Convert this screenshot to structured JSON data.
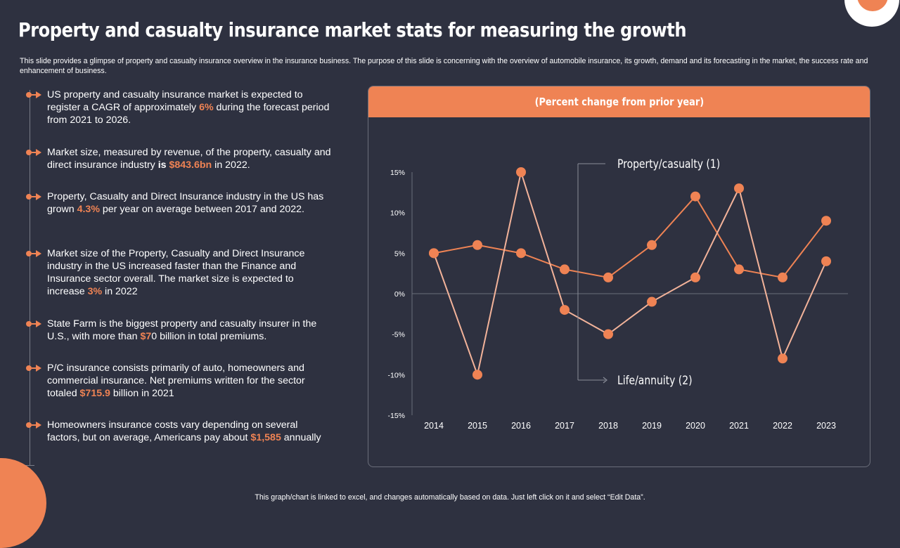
{
  "title": "Property and casualty insurance market stats for measuring the growth",
  "subtitle": "This slide provides a glimpse of property and casualty insurance overview in the insurance business. The purpose of this slide is concerning with the overview of automobile insurance, its growth, demand and its forecasting in the market, the success rate and enhancement of business.",
  "bullets": [
    {
      "parts": [
        {
          "t": "US property and casualty insurance market is expected to register a CAGR of approximately "
        },
        {
          "t": "6%",
          "hl": true
        },
        {
          "t": " during the forecast period from 2021 to 2026."
        }
      ]
    },
    {
      "parts": [
        {
          "t": " Market size, measured by revenue, of the property, casualty and direct insurance industry "
        },
        {
          "t": "is ",
          "bold": true
        },
        {
          "t": "$843.6bn",
          "hl": true
        },
        {
          "t": " in 2022."
        }
      ]
    },
    {
      "parts": [
        {
          "t": "Property, Casualty and Direct Insurance industry in the US has grown "
        },
        {
          "t": "4.3%",
          "hl": true
        },
        {
          "t": " per year on average between 2017 and 2022."
        }
      ]
    },
    {
      "parts": [
        {
          "t": "Market size of the Property, Casualty and Direct Insurance industry in the US increased faster than the Finance and Insurance sector overall. The market size is expected to increase "
        },
        {
          "t": "3%",
          "hl": true
        },
        {
          "t": " in 2022"
        }
      ]
    },
    {
      "parts": [
        {
          "t": "State Farm is the biggest property and casualty insurer in the U.S., with more than "
        },
        {
          "t": "$7",
          "hl": true
        },
        {
          "t": "0 billion in total premiums."
        }
      ]
    },
    {
      "parts": [
        {
          "t": "P/C insurance consists primarily of auto, homeowners and commercial insurance. Net premiums written for the sector totaled "
        },
        {
          "t": "$715.9",
          "hl": true
        },
        {
          "t": " billion in 2021"
        }
      ]
    },
    {
      "parts": [
        {
          "t": "Homeowners insurance costs vary depending on several factors, but on average, Americans pay about "
        },
        {
          "t": "$1,585",
          "hl": true
        },
        {
          "t": " annually"
        }
      ]
    }
  ],
  "footer": "This graph/chart is linked to excel,  and changes automatically based on data. Just left click on it and select “Edit Data”.",
  "colors": {
    "accent": "#ef8354",
    "series2": "#f3b39a",
    "background": "#2e3140"
  },
  "chart_data": {
    "type": "line",
    "title": "(Percent change from prior year)",
    "x": [
      "2014",
      "2015",
      "2016",
      "2017",
      "2018",
      "2019",
      "2020",
      "2021",
      "2022",
      "2023"
    ],
    "ylim": [
      -15,
      15
    ],
    "yticks": [
      15,
      10,
      5,
      0,
      -5,
      -10,
      -15
    ],
    "ytick_labels": [
      "15%",
      "10%",
      "5%",
      "0%",
      "-5%",
      "-10%",
      "-15%"
    ],
    "grid": false,
    "series": [
      {
        "name": "Property/casualty  (1)",
        "values": [
          5,
          6,
          5,
          3,
          2,
          6,
          12,
          3,
          2,
          9
        ]
      },
      {
        "name": "Life/annuity  (2)",
        "values": [
          5,
          -10,
          15,
          -2,
          -5,
          -1,
          2,
          13,
          -8,
          4
        ]
      }
    ]
  }
}
